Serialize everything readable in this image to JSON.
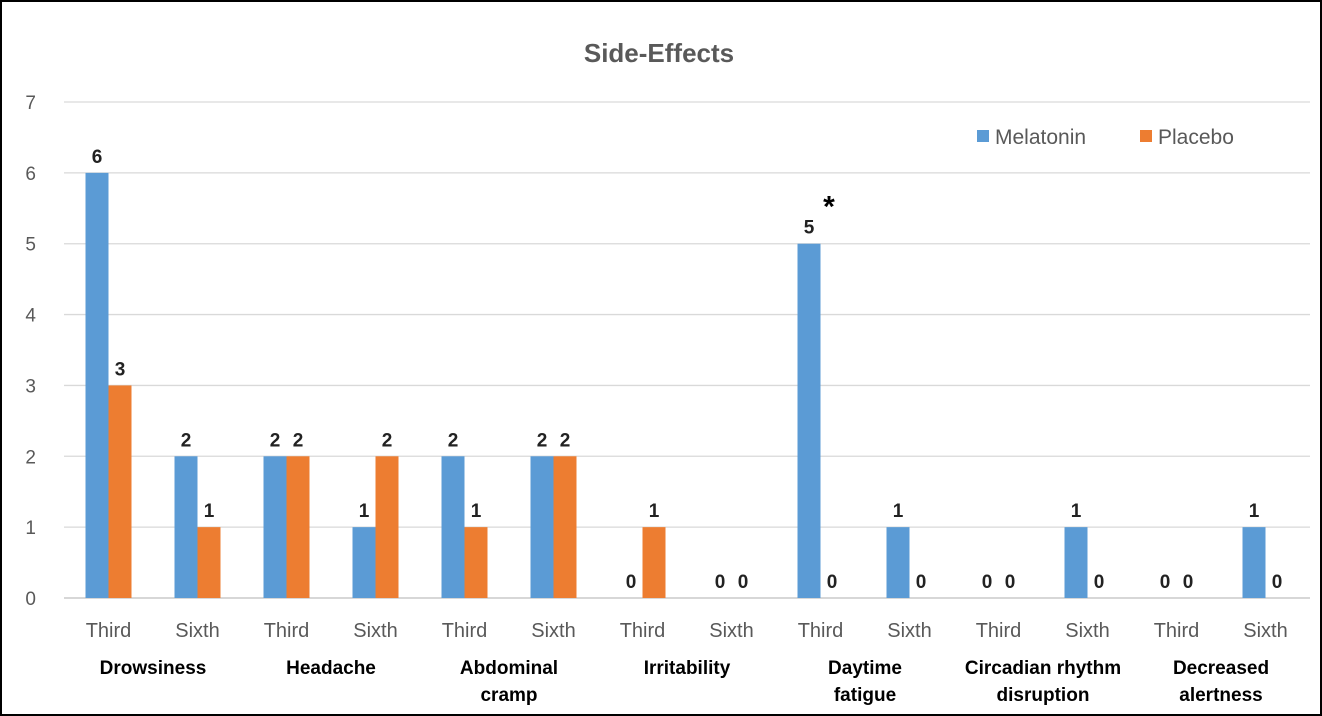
{
  "chart_data": {
    "type": "bar",
    "title": "Side-Effects",
    "xlabel": "",
    "ylabel": "",
    "ylim": [
      0,
      7
    ],
    "yticks": [
      0,
      1,
      2,
      3,
      4,
      5,
      6,
      7
    ],
    "grid": true,
    "legend_position": "top-right",
    "groups": [
      {
        "name": "Drowsiness",
        "lines": [
          "Drowsiness"
        ]
      },
      {
        "name": "Headache",
        "lines": [
          "Headache"
        ]
      },
      {
        "name": "Abdominal cramp",
        "lines": [
          "Abdominal",
          "cramp"
        ]
      },
      {
        "name": "Irritability",
        "lines": [
          "Irritability"
        ]
      },
      {
        "name": "Daytime fatigue",
        "lines": [
          "Daytime",
          "fatigue"
        ]
      },
      {
        "name": "Circadian rhythm disruption",
        "lines": [
          "Circadian rhythm",
          "disruption"
        ]
      },
      {
        "name": "Decreased alertness",
        "lines": [
          "Decreased",
          "alertness"
        ]
      }
    ],
    "categories": [
      "Third",
      "Sixth",
      "Third",
      "Sixth",
      "Third",
      "Sixth",
      "Third",
      "Sixth",
      "Third",
      "Sixth",
      "Third",
      "Sixth",
      "Third",
      "Sixth"
    ],
    "series": [
      {
        "name": "Melatonin",
        "color": "#5B9BD5",
        "values": [
          6,
          2,
          2,
          1,
          2,
          2,
          0,
          0,
          5,
          1,
          0,
          1,
          0,
          1
        ]
      },
      {
        "name": "Placebo",
        "color": "#ED7D31",
        "values": [
          3,
          1,
          2,
          2,
          1,
          2,
          1,
          0,
          0,
          0,
          0,
          0,
          0,
          0
        ]
      }
    ],
    "annotations": [
      {
        "text": "*",
        "category_index": 8,
        "series": "Melatonin"
      }
    ]
  }
}
